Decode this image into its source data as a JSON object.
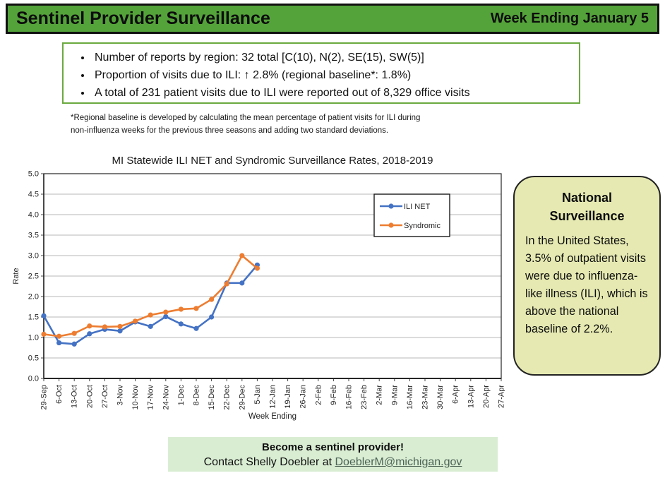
{
  "header": {
    "title": "Sentinel Provider Surveillance",
    "week": "Week Ending January 5",
    "bg": "#54a33a"
  },
  "summary_box": {
    "border_color": "#6aaa3f",
    "bullets": [
      "Number of reports by region: 32 total [C(10), N(2), SE(15), SW(5)]",
      "Proportion of visits due to ILI: ↑ 2.8% (regional baseline*: 1.8%)",
      "A total of 231 patient visits due to ILI were reported out of 8,329 office visits"
    ]
  },
  "footnote": {
    "line1": "*Regional baseline is developed by calculating the mean percentage of patient visits for ILI during",
    "line2": "non-influenza weeks for the previous three seasons and adding two standard deviations."
  },
  "chart_data": {
    "type": "line",
    "title": "MI Statewide ILI NET and Syndromic Surveillance Rates, 2018-2019",
    "xlabel": "Week Ending",
    "ylabel": "Rate",
    "ylim": [
      0,
      5
    ],
    "ytick_step": 0.5,
    "grid": true,
    "legend_position": "upper-right-inside",
    "categories": [
      "29-Sep",
      "6-Oct",
      "13-Oct",
      "20-Oct",
      "27-Oct",
      "3-Nov",
      "10-Nov",
      "17-Nov",
      "24-Nov",
      "1-Dec",
      "8-Dec",
      "15-Dec",
      "22-Dec",
      "29-Dec",
      "5-Jan",
      "12-Jan",
      "19-Jan",
      "26-Jan",
      "2-Feb",
      "9-Feb",
      "16-Feb",
      "23-Feb",
      "2-Mar",
      "9-Mar",
      "16-Mar",
      "23-Mar",
      "30-Mar",
      "6-Apr",
      "13-Apr",
      "20-Apr",
      "27-Apr"
    ],
    "series": [
      {
        "name": "ILI NET",
        "color": "#4472C4",
        "values": [
          1.53,
          0.87,
          0.84,
          1.09,
          1.2,
          1.16,
          1.38,
          1.27,
          1.51,
          1.33,
          1.22,
          1.5,
          2.33,
          2.33,
          2.77
        ]
      },
      {
        "name": "Syndromic",
        "color": "#ED7D31",
        "values": [
          1.08,
          1.03,
          1.1,
          1.28,
          1.26,
          1.27,
          1.4,
          1.55,
          1.62,
          1.69,
          1.71,
          1.93,
          2.31,
          3.0,
          2.69
        ]
      }
    ]
  },
  "national_box": {
    "bg": "#e6eab2",
    "title_lines": [
      "National",
      "Surveillance"
    ],
    "body": "In the United States, 3.5% of outpatient visits were due to influenza-like illness (ILI), which is above the national baseline of 2.2%."
  },
  "footer_box": {
    "bg": "#d9edd3",
    "line1": "Become a sentinel provider!",
    "line2_prefix": "Contact Shelly Doebler at ",
    "link": "DoeblerM@michigan.gov",
    "link_color": "#4d6355"
  }
}
